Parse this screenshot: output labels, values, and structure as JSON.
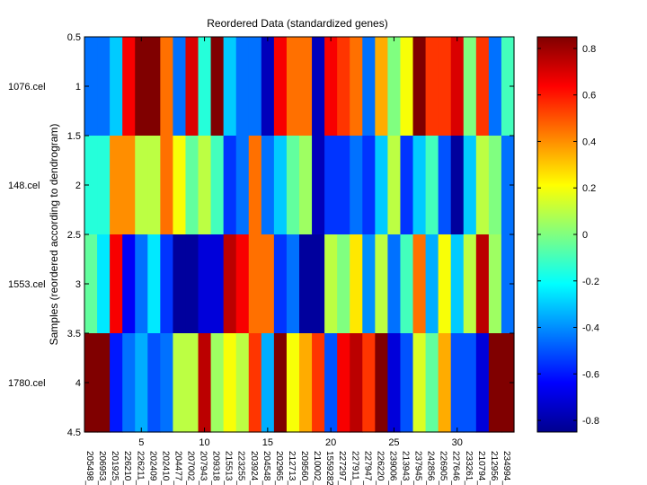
{
  "chart_data": {
    "type": "heatmap",
    "title": "Reordered Data (standardized genes)",
    "ylabel": "Samples (reordered according to dendrogram)",
    "xlabel": "",
    "rows": [
      "1076.cel",
      "148.cel",
      "1553.cel",
      "1780.cel"
    ],
    "columns": [
      "205498_",
      "206953_",
      "201925_",
      "226210_",
      "226211_",
      "202409_",
      "202410_",
      "204477_",
      "207002_",
      "207943_",
      "209318_",
      "215513_",
      "223255_",
      "203924_",
      "204548_",
      "202965_",
      "212713_",
      "209560_",
      "210002_",
      "1559282_",
      "227297_",
      "227911_",
      "227947_",
      "226220_",
      "239006_",
      "213943_",
      "237945_",
      "242856_",
      "226905_",
      "227646_",
      "233261_",
      "210794_",
      "212956_",
      "234994_"
    ],
    "values": [
      [
        -0.45,
        -0.45,
        -0.3,
        0.65,
        0.85,
        0.85,
        0.45,
        -0.45,
        0.7,
        -0.15,
        0.85,
        -0.3,
        -0.45,
        -0.45,
        -0.75,
        0.65,
        0.45,
        0.45,
        -0.75,
        0.65,
        0.55,
        0.45,
        -0.45,
        0.35,
        0.0,
        0.2,
        0.85,
        0.55,
        0.55,
        0.7,
        0.0,
        0.55,
        -0.45,
        -0.1
      ],
      [
        -0.15,
        -0.15,
        0.4,
        0.4,
        0.1,
        0.1,
        0.45,
        0.2,
        -0.05,
        0.1,
        -0.1,
        -0.55,
        -0.45,
        0.45,
        -0.45,
        -0.3,
        -0.05,
        0.05,
        -0.75,
        -0.55,
        -0.55,
        -0.45,
        -0.55,
        -0.3,
        0.1,
        -0.55,
        -0.3,
        -0.1,
        -0.5,
        -0.8,
        -0.3,
        0.1,
        0.0,
        -0.45
      ],
      [
        -0.05,
        -0.25,
        0.65,
        -0.65,
        -0.45,
        -0.25,
        -0.55,
        -0.8,
        -0.8,
        -0.7,
        -0.7,
        0.75,
        0.65,
        0.45,
        0.45,
        -0.55,
        -0.45,
        -0.8,
        -0.8,
        0.1,
        0.0,
        0.25,
        -0.4,
        0.1,
        -0.45,
        -0.1,
        0.45,
        -0.35,
        0.2,
        -0.3,
        0.1,
        0.75,
        0.05,
        -0.45
      ],
      [
        0.85,
        0.85,
        -0.6,
        -0.45,
        -0.35,
        -0.5,
        -0.45,
        0.1,
        0.1,
        0.75,
        0.05,
        0.2,
        0.1,
        0.55,
        -0.35,
        0.85,
        0.2,
        0.35,
        0.55,
        -0.5,
        0.65,
        0.75,
        0.55,
        0.85,
        -0.7,
        -0.5,
        0.15,
        -0.05,
        0.35,
        -0.5,
        -0.5,
        -0.7,
        0.85,
        0.85
      ]
    ],
    "x_ticks": [
      5,
      10,
      15,
      20,
      25,
      30
    ],
    "y_ticks": [
      "0.5",
      "1",
      "1.5",
      "2",
      "2.5",
      "3",
      "3.5",
      "4",
      "4.5"
    ],
    "colorbar": {
      "ticks": [
        "0.8",
        "0.6",
        "0.4",
        "0.2",
        "0",
        "-0.2",
        "-0.4",
        "-0.6",
        "-0.8"
      ],
      "range": [
        -0.85,
        0.85
      ],
      "colormap": "jet"
    },
    "grid": false
  }
}
